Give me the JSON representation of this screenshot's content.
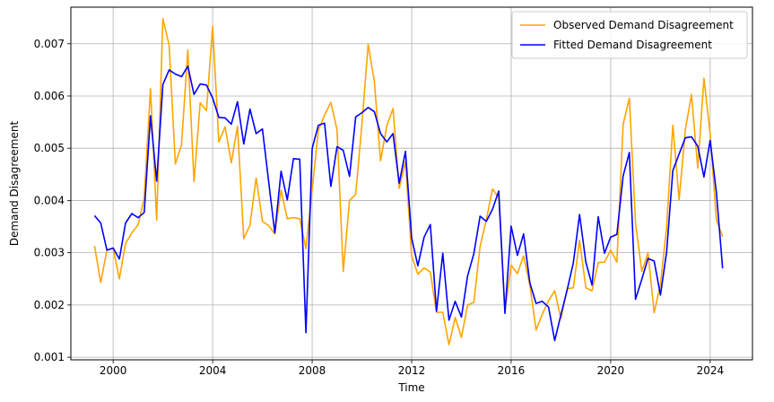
{
  "chart_data": {
    "type": "line",
    "title": "",
    "xlabel": "Time",
    "ylabel": "Demand Disagreement",
    "xlim": [
      1998.3,
      2025.7
    ],
    "ylim": [
      0.00095,
      0.0077
    ],
    "x_ticks": [
      2000,
      2004,
      2008,
      2012,
      2016,
      2020,
      2024
    ],
    "x_tick_labels": [
      "2000",
      "2004",
      "2008",
      "2012",
      "2016",
      "2020",
      "2024"
    ],
    "y_ticks": [
      0.001,
      0.002,
      0.003,
      0.004,
      0.005,
      0.006,
      0.007
    ],
    "y_tick_labels": [
      "0.001",
      "0.002",
      "0.003",
      "0.004",
      "0.005",
      "0.006",
      "0.007"
    ],
    "grid": true,
    "legend_position": "top-right",
    "x": [
      1999.25,
      1999.5,
      1999.75,
      2000.0,
      2000.25,
      2000.5,
      2000.75,
      2001.0,
      2001.25,
      2001.5,
      2001.75,
      2002.0,
      2002.25,
      2002.5,
      2002.75,
      2003.0,
      2003.25,
      2003.5,
      2003.75,
      2004.0,
      2004.25,
      2004.5,
      2004.75,
      2005.0,
      2005.25,
      2005.5,
      2005.75,
      2006.0,
      2006.25,
      2006.5,
      2006.75,
      2007.0,
      2007.25,
      2007.5,
      2007.75,
      2008.0,
      2008.25,
      2008.5,
      2008.75,
      2009.0,
      2009.25,
      2009.5,
      2009.75,
      2010.0,
      2010.25,
      2010.5,
      2010.75,
      2011.0,
      2011.25,
      2011.5,
      2011.75,
      2012.0,
      2012.25,
      2012.5,
      2012.75,
      2013.0,
      2013.25,
      2013.5,
      2013.75,
      2014.0,
      2014.25,
      2014.5,
      2014.75,
      2015.0,
      2015.25,
      2015.5,
      2015.75,
      2016.0,
      2016.25,
      2016.5,
      2016.75,
      2017.0,
      2017.25,
      2017.5,
      2017.75,
      2018.0,
      2018.25,
      2018.5,
      2018.75,
      2019.0,
      2019.25,
      2019.5,
      2019.75,
      2020.0,
      2020.25,
      2020.5,
      2020.75,
      2021.0,
      2021.25,
      2021.5,
      2021.75,
      2022.0,
      2022.25,
      2022.5,
      2022.75,
      2023.0,
      2023.25,
      2023.5,
      2023.75,
      2024.0,
      2024.25,
      2024.5
    ],
    "series": [
      {
        "name": "Observed Demand Disagreement",
        "color": "#FFA500",
        "values": [
          0.00313,
          0.00243,
          0.00305,
          0.00308,
          0.0025,
          0.00318,
          0.00338,
          0.00353,
          0.00405,
          0.00614,
          0.00362,
          0.00748,
          0.00697,
          0.0047,
          0.00507,
          0.00688,
          0.00436,
          0.00587,
          0.00572,
          0.00734,
          0.00512,
          0.00541,
          0.00472,
          0.00542,
          0.00327,
          0.00353,
          0.00443,
          0.0036,
          0.00352,
          0.00336,
          0.0042,
          0.00365,
          0.00367,
          0.00365,
          0.00308,
          0.0042,
          0.00535,
          0.00563,
          0.00588,
          0.00535,
          0.00264,
          0.004,
          0.00412,
          0.00545,
          0.00699,
          0.00628,
          0.00476,
          0.00543,
          0.00576,
          0.00423,
          0.00475,
          0.00294,
          0.00259,
          0.00271,
          0.00263,
          0.00186,
          0.00186,
          0.00124,
          0.00176,
          0.00138,
          0.002,
          0.00205,
          0.00312,
          0.00363,
          0.00422,
          0.00405,
          0.00189,
          0.00276,
          0.0026,
          0.00294,
          0.00238,
          0.00152,
          0.00182,
          0.00208,
          0.00227,
          0.00174,
          0.00231,
          0.00233,
          0.00324,
          0.00233,
          0.00227,
          0.00281,
          0.00282,
          0.00305,
          0.00282,
          0.00546,
          0.00596,
          0.00357,
          0.00264,
          0.003,
          0.00185,
          0.0024,
          0.00349,
          0.00544,
          0.00401,
          0.00535,
          0.00603,
          0.00462,
          0.00634,
          0.00528,
          0.00363,
          0.00331
        ]
      },
      {
        "name": "Fitted Demand Disagreement",
        "color": "#0000FF",
        "values": [
          0.00371,
          0.00357,
          0.00305,
          0.00309,
          0.00288,
          0.00357,
          0.00375,
          0.00367,
          0.00377,
          0.00562,
          0.00437,
          0.00622,
          0.0065,
          0.00642,
          0.00637,
          0.00657,
          0.00603,
          0.00623,
          0.00621,
          0.00596,
          0.00559,
          0.00558,
          0.00546,
          0.00589,
          0.00508,
          0.00575,
          0.00528,
          0.00537,
          0.00437,
          0.00338,
          0.00456,
          0.00401,
          0.0048,
          0.00479,
          0.00147,
          0.005,
          0.00544,
          0.00548,
          0.00427,
          0.00503,
          0.00496,
          0.00446,
          0.0056,
          0.00568,
          0.00578,
          0.0057,
          0.00528,
          0.00512,
          0.00528,
          0.00433,
          0.00494,
          0.00328,
          0.00275,
          0.0033,
          0.00354,
          0.00188,
          0.00299,
          0.00171,
          0.00207,
          0.00177,
          0.00256,
          0.00298,
          0.0037,
          0.0036,
          0.00383,
          0.00418,
          0.00184,
          0.00351,
          0.00295,
          0.00336,
          0.00242,
          0.00203,
          0.00207,
          0.00196,
          0.00132,
          0.00181,
          0.00229,
          0.00281,
          0.00373,
          0.00282,
          0.00238,
          0.00369,
          0.00299,
          0.0033,
          0.00335,
          0.00447,
          0.00492,
          0.00211,
          0.00249,
          0.00289,
          0.00284,
          0.00219,
          0.00302,
          0.00457,
          0.00489,
          0.0052,
          0.00522,
          0.00504,
          0.00445,
          0.00515,
          0.00415,
          0.0027
        ]
      }
    ]
  }
}
